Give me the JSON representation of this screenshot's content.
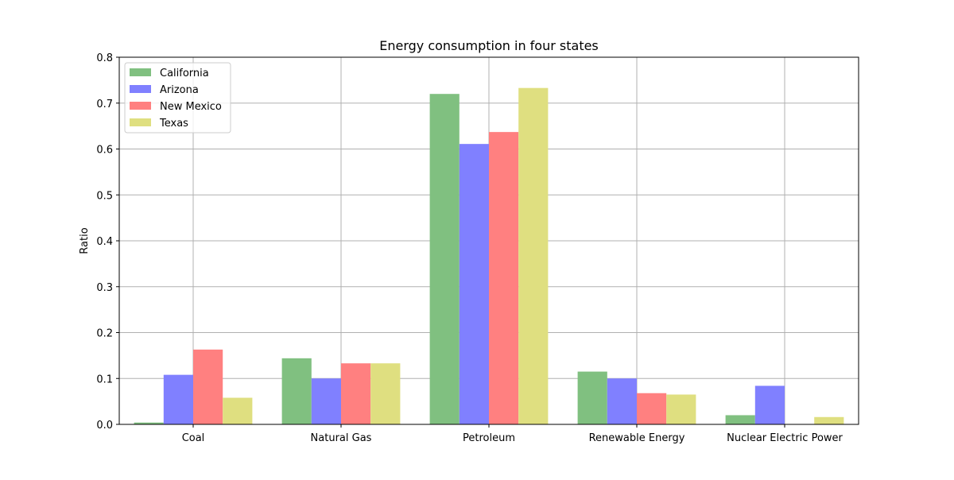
{
  "chart_data": {
    "type": "bar",
    "title": "Energy consumption in four states",
    "xlabel": "",
    "ylabel": "Ratio",
    "categories": [
      "Coal",
      "Natural Gas",
      "Petroleum",
      "Renewable Energy",
      "Nuclear Electric Power"
    ],
    "series": [
      {
        "name": "California",
        "color": "#80c080",
        "values": [
          0.004,
          0.144,
          0.72,
          0.115,
          0.02
        ]
      },
      {
        "name": "Arizona",
        "color": "#8080ff",
        "values": [
          0.108,
          0.1,
          0.611,
          0.1,
          0.084
        ]
      },
      {
        "name": "New Mexico",
        "color": "#ff8080",
        "values": [
          0.163,
          0.133,
          0.637,
          0.068,
          0.0
        ]
      },
      {
        "name": "Texas",
        "color": "#dfdf80",
        "values": [
          0.058,
          0.133,
          0.733,
          0.065,
          0.016
        ]
      }
    ],
    "ylim": [
      0,
      0.8
    ],
    "yticks": [
      "0.0",
      "0.1",
      "0.2",
      "0.3",
      "0.4",
      "0.5",
      "0.6",
      "0.7",
      "0.8"
    ],
    "grid": true,
    "legend_position": "top-left"
  }
}
